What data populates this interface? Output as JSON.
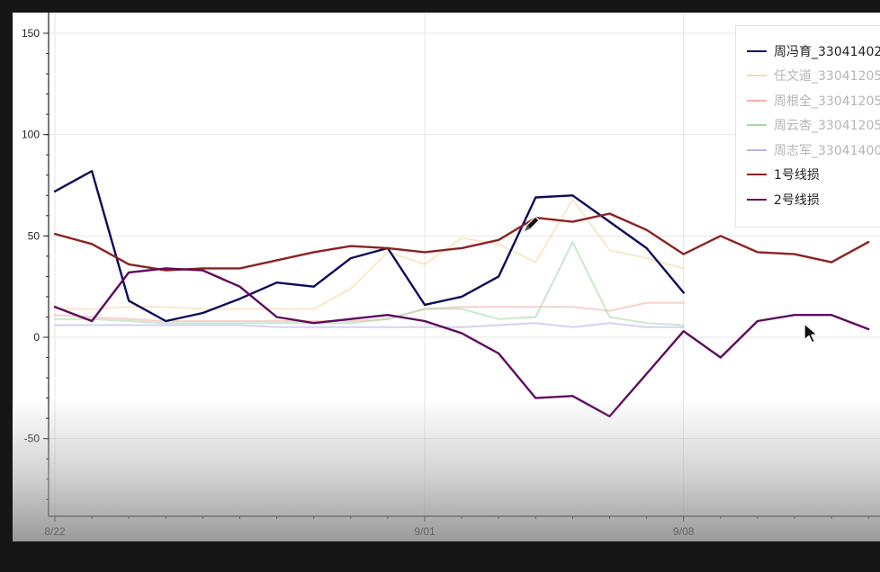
{
  "chart_data": {
    "type": "line",
    "x": [
      "8/22",
      "8/23",
      "8/24",
      "8/25",
      "8/26",
      "8/27",
      "8/28",
      "8/29",
      "8/30",
      "8/31",
      "9/01",
      "9/02",
      "9/03",
      "9/04",
      "9/05",
      "9/06",
      "9/07",
      "9/08",
      "9/09",
      "9/10",
      "9/11",
      "9/12",
      "9/13"
    ],
    "x_ticks": [
      "8/22",
      "9/01",
      "9/08"
    ],
    "y_ticks": [
      150,
      100,
      50,
      0,
      -50
    ],
    "ylim": [
      -88,
      160
    ],
    "grid": true,
    "legend_position": "top-right",
    "series": [
      {
        "name": "周冯育_33041402",
        "color": "#0b0b5c",
        "muted": false,
        "values": [
          72,
          82,
          18,
          8,
          12,
          19,
          27,
          25,
          39,
          44,
          16,
          20,
          30,
          69,
          70,
          57,
          44,
          22,
          null,
          null,
          null,
          null,
          null
        ]
      },
      {
        "name": "任文道_33041205",
        "color": "#f7d9a6",
        "muted": true,
        "values": [
          14,
          14,
          15,
          15,
          14,
          14,
          14,
          14,
          24,
          42,
          36,
          49,
          46,
          37,
          68,
          43,
          39,
          34,
          null,
          null,
          null,
          null,
          null
        ]
      },
      {
        "name": "周根全_33041205",
        "color": "#f4b0ac",
        "muted": true,
        "values": [
          11,
          10,
          9,
          8,
          8,
          8,
          8,
          8,
          8,
          9,
          14,
          15,
          15,
          15,
          15,
          13,
          17,
          17,
          null,
          null,
          null,
          null,
          null
        ]
      },
      {
        "name": "周云杏_33041205",
        "color": "#a8d8a8",
        "muted": true,
        "values": [
          9,
          9,
          8,
          7,
          7,
          7,
          7,
          7,
          7,
          9,
          14,
          14,
          9,
          10,
          47,
          10,
          7,
          6,
          null,
          null,
          null,
          null,
          null
        ]
      },
      {
        "name": "周志军_33041400",
        "color": "#b4b4f0",
        "muted": true,
        "values": [
          6,
          6,
          6,
          6,
          6,
          6,
          5,
          5,
          5,
          5,
          5,
          5,
          6,
          7,
          5,
          7,
          5,
          5,
          null,
          null,
          null,
          null,
          null
        ]
      },
      {
        "name": "1号线损",
        "color": "#8b2320",
        "muted": false,
        "values": [
          51,
          46,
          36,
          33,
          34,
          34,
          38,
          42,
          45,
          44,
          42,
          44,
          48,
          59,
          57,
          61,
          53,
          41,
          50,
          42,
          41,
          37,
          47
        ]
      },
      {
        "name": "2号线损",
        "color": "#5e0a5e",
        "muted": false,
        "values": [
          15,
          8,
          32,
          34,
          33,
          25,
          10,
          7,
          9,
          11,
          8,
          2,
          -8,
          -30,
          -29,
          -39,
          -18,
          3,
          -10,
          8,
          11,
          11,
          4
        ]
      }
    ]
  },
  "icons": {
    "pen_cursor": "pen-cursor-icon",
    "arrow_cursor": "arrow-cursor-icon"
  }
}
